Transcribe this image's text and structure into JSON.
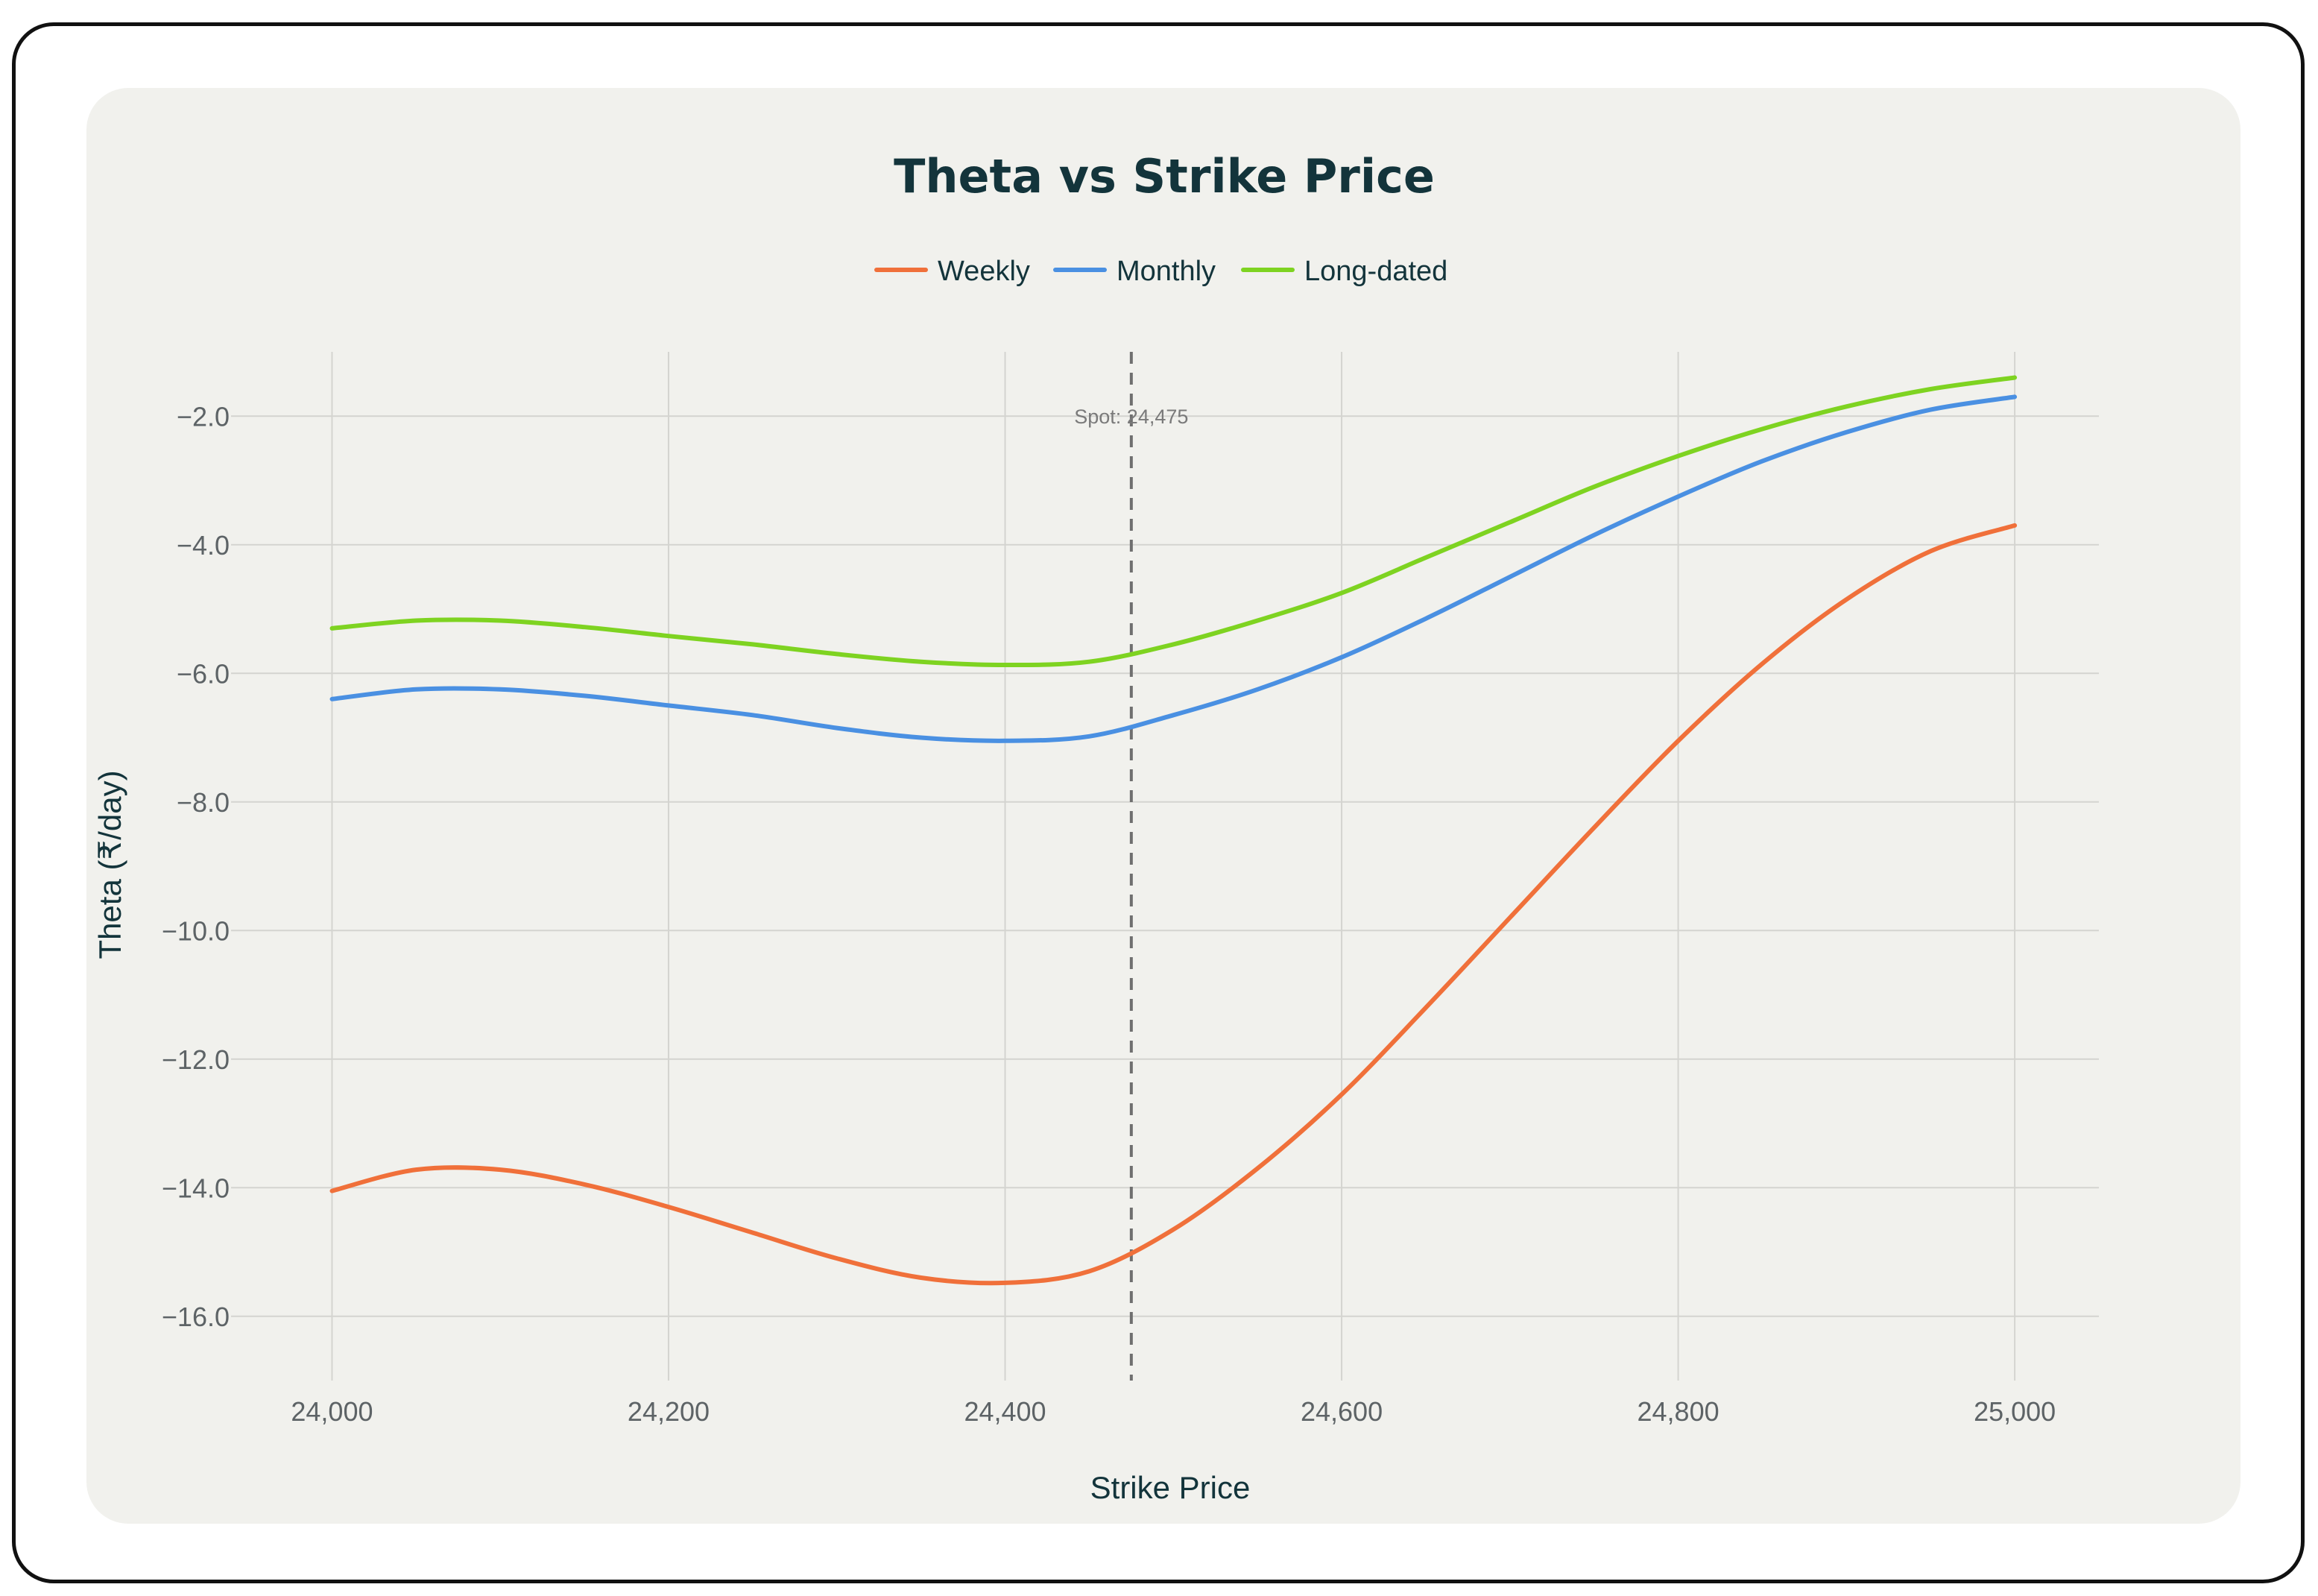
{
  "chart_data": {
    "type": "line",
    "title": "Theta vs Strike Price",
    "xlabel": "Strike Price",
    "ylabel": "Theta (₹/day)",
    "xlim": [
      23940,
      25050
    ],
    "ylim": [
      -17.0,
      -1.0
    ],
    "x_ticks": [
      24000,
      24200,
      24400,
      24600,
      24800,
      25000
    ],
    "x_tick_labels": [
      "24,000",
      "24,200",
      "24,400",
      "24,600",
      "24,800",
      "25,000"
    ],
    "y_ticks": [
      -2,
      -4,
      -6,
      -8,
      -10,
      -12,
      -14,
      -16
    ],
    "y_tick_labels": [
      "−2.0",
      "−4.0",
      "−6.0",
      "−8.0",
      "−10.0",
      "−12.0",
      "−14.0",
      "−16.0"
    ],
    "grid": true,
    "legend_position": "top-center",
    "x": [
      24000,
      24050,
      24100,
      24150,
      24200,
      24250,
      24300,
      24350,
      24400,
      24450,
      24500,
      24550,
      24600,
      24650,
      24700,
      24750,
      24800,
      24850,
      24900,
      24950,
      25000
    ],
    "series": [
      {
        "name": "Weekly",
        "color": "#f0703a",
        "values": [
          -14.05,
          -13.72,
          -13.72,
          -13.95,
          -14.3,
          -14.7,
          -15.1,
          -15.4,
          -15.48,
          -15.3,
          -14.65,
          -13.7,
          -12.55,
          -11.2,
          -9.8,
          -8.4,
          -7.05,
          -5.85,
          -4.85,
          -4.1,
          -3.7
        ]
      },
      {
        "name": "Monthly",
        "color": "#4a90e2",
        "values": [
          -6.4,
          -6.25,
          -6.25,
          -6.35,
          -6.5,
          -6.65,
          -6.85,
          -7.0,
          -7.05,
          -6.98,
          -6.65,
          -6.25,
          -5.75,
          -5.15,
          -4.5,
          -3.85,
          -3.25,
          -2.7,
          -2.25,
          -1.9,
          -1.7
        ]
      },
      {
        "name": "Long-dated",
        "color": "#7ed321",
        "values": [
          -5.3,
          -5.18,
          -5.18,
          -5.28,
          -5.42,
          -5.55,
          -5.7,
          -5.82,
          -5.87,
          -5.82,
          -5.55,
          -5.18,
          -4.75,
          -4.2,
          -3.65,
          -3.1,
          -2.62,
          -2.2,
          -1.85,
          -1.58,
          -1.4
        ]
      }
    ],
    "annotations": [
      {
        "type": "vline",
        "x": 24475,
        "label": "Spot: 24,475",
        "style": "dashed"
      }
    ]
  }
}
